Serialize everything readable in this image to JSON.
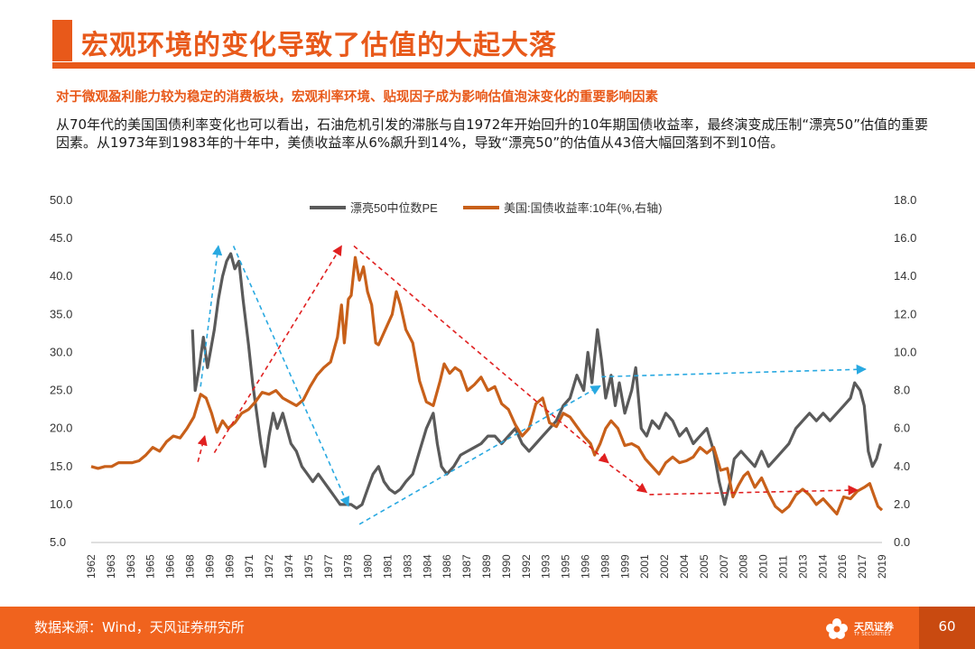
{
  "page": {
    "title": "宏观环境的变化导致了估值的大起大落",
    "subtitle": "对于微观盈利能力较为稳定的消费板块，宏观利率环境、贴现因子成为影响估值泡沫变化的重要影响因素",
    "body": "从70年代的美国国债利率变化也可以看出，石油危机引发的滞胀与自1972年开始回升的10年期国债收益率，最终演变成压制“漂亮50”估值的重要因素。从1973年到1983年的十年中，美债收益率从6%飙升到14%，导致“漂亮50”的估值从43倍大幅回落到不到10倍。",
    "footer_source": "数据来源：Wind，天风证券研究所",
    "logo_text": "天风证券",
    "logo_subtext": "TF SECURITIES",
    "page_number": "60"
  },
  "colors": {
    "accent": "#e8591a",
    "pe_series": "#5a5a5a",
    "yield_series": "#c8601a",
    "arrow_blue": "#29a9e1",
    "arrow_red": "#e02020"
  },
  "icons": {
    "logo": "tf-securities-flower-icon"
  },
  "chart_data": {
    "type": "line",
    "x_categories": [
      "1962",
      "1963",
      "1963",
      "1965",
      "1966",
      "1968",
      "1969",
      "1969",
      "1971",
      "1972",
      "1974",
      "1975",
      "1977",
      "1978",
      "1980",
      "1981",
      "1983",
      "1984",
      "1986",
      "1987",
      "1989",
      "1990",
      "1992",
      "1993",
      "1995",
      "1996",
      "1998",
      "1999",
      "2001",
      "2002",
      "2004",
      "2005",
      "2007",
      "2008",
      "2010",
      "2011",
      "2013",
      "2014",
      "2016",
      "2017",
      "2019"
    ],
    "x_range": [
      1962,
      2019.8
    ],
    "y_left": {
      "ticks": [
        "5.0",
        "10.0",
        "15.0",
        "20.0",
        "25.0",
        "30.0",
        "35.0",
        "40.0",
        "45.0",
        "50.0"
      ],
      "range": [
        5,
        50
      ]
    },
    "y_right": {
      "ticks": [
        "0.0",
        "2.0",
        "4.0",
        "6.0",
        "8.0",
        "10.0",
        "12.0",
        "14.0",
        "16.0",
        "18.0"
      ],
      "range": [
        0,
        18
      ]
    },
    "legend_position": "top-center",
    "grid": false,
    "series": [
      {
        "name": "漂亮50中位数PE",
        "axis": "left",
        "points": [
          [
            1969.4,
            33
          ],
          [
            1969.6,
            25
          ],
          [
            1969.9,
            28
          ],
          [
            1970.2,
            32
          ],
          [
            1970.5,
            28
          ],
          [
            1970.7,
            30
          ],
          [
            1971.0,
            33
          ],
          [
            1971.3,
            37
          ],
          [
            1971.6,
            40
          ],
          [
            1971.9,
            42
          ],
          [
            1972.2,
            43
          ],
          [
            1972.5,
            41
          ],
          [
            1972.8,
            42
          ],
          [
            1973.1,
            37
          ],
          [
            1973.5,
            31
          ],
          [
            1973.8,
            26
          ],
          [
            1974.1,
            22
          ],
          [
            1974.4,
            18
          ],
          [
            1974.7,
            15
          ],
          [
            1975.0,
            19
          ],
          [
            1975.3,
            22
          ],
          [
            1975.6,
            20
          ],
          [
            1976.0,
            22
          ],
          [
            1976.3,
            20
          ],
          [
            1976.6,
            18
          ],
          [
            1977.0,
            17
          ],
          [
            1977.4,
            15
          ],
          [
            1977.8,
            14
          ],
          [
            1978.2,
            13
          ],
          [
            1978.6,
            14
          ],
          [
            1979.0,
            13
          ],
          [
            1979.4,
            12
          ],
          [
            1979.8,
            11
          ],
          [
            1980.2,
            10
          ],
          [
            1980.6,
            10
          ],
          [
            1981.0,
            10
          ],
          [
            1981.4,
            9.5
          ],
          [
            1981.8,
            10
          ],
          [
            1982.2,
            12
          ],
          [
            1982.6,
            14
          ],
          [
            1983.0,
            15
          ],
          [
            1983.4,
            13
          ],
          [
            1983.8,
            12
          ],
          [
            1984.2,
            11.5
          ],
          [
            1984.6,
            12
          ],
          [
            1985.0,
            13
          ],
          [
            1985.5,
            14
          ],
          [
            1986.0,
            17
          ],
          [
            1986.5,
            20
          ],
          [
            1987.0,
            22
          ],
          [
            1987.3,
            18
          ],
          [
            1987.6,
            15
          ],
          [
            1988.0,
            14
          ],
          [
            1988.5,
            15
          ],
          [
            1989.0,
            16.5
          ],
          [
            1989.5,
            17
          ],
          [
            1990.0,
            17.5
          ],
          [
            1990.5,
            18
          ],
          [
            1991.0,
            19
          ],
          [
            1991.5,
            19
          ],
          [
            1992.0,
            18
          ],
          [
            1992.5,
            19
          ],
          [
            1993.0,
            20
          ],
          [
            1993.5,
            18
          ],
          [
            1994.0,
            17
          ],
          [
            1994.5,
            18
          ],
          [
            1995.0,
            19
          ],
          [
            1995.5,
            20
          ],
          [
            1996.0,
            21
          ],
          [
            1996.5,
            23
          ],
          [
            1997.0,
            24
          ],
          [
            1997.5,
            27
          ],
          [
            1998.0,
            25
          ],
          [
            1998.3,
            30
          ],
          [
            1998.6,
            26
          ],
          [
            1999.0,
            33
          ],
          [
            1999.3,
            29
          ],
          [
            1999.6,
            24
          ],
          [
            2000.0,
            27
          ],
          [
            2000.3,
            23
          ],
          [
            2000.6,
            26
          ],
          [
            2001.0,
            22
          ],
          [
            2001.5,
            25
          ],
          [
            2001.8,
            28
          ],
          [
            2002.2,
            20
          ],
          [
            2002.6,
            19
          ],
          [
            2003.0,
            21
          ],
          [
            2003.5,
            20
          ],
          [
            2004.0,
            22
          ],
          [
            2004.5,
            21
          ],
          [
            2005.0,
            19
          ],
          [
            2005.5,
            20
          ],
          [
            2006.0,
            18
          ],
          [
            2006.5,
            19
          ],
          [
            2007.0,
            20
          ],
          [
            2007.5,
            17
          ],
          [
            2007.9,
            13
          ],
          [
            2008.3,
            10
          ],
          [
            2008.7,
            13
          ],
          [
            2009.0,
            16
          ],
          [
            2009.5,
            17
          ],
          [
            2010.0,
            16
          ],
          [
            2010.5,
            15
          ],
          [
            2011.0,
            17
          ],
          [
            2011.5,
            15
          ],
          [
            2012.0,
            16
          ],
          [
            2012.5,
            17
          ],
          [
            2013.0,
            18
          ],
          [
            2013.5,
            20
          ],
          [
            2014.0,
            21
          ],
          [
            2014.5,
            22
          ],
          [
            2015.0,
            21
          ],
          [
            2015.5,
            22
          ],
          [
            2016.0,
            21
          ],
          [
            2016.5,
            22
          ],
          [
            2017.0,
            23
          ],
          [
            2017.5,
            24
          ],
          [
            2017.8,
            26
          ],
          [
            2018.2,
            25
          ],
          [
            2018.5,
            23
          ],
          [
            2018.8,
            17
          ],
          [
            2019.1,
            15
          ],
          [
            2019.4,
            16
          ],
          [
            2019.7,
            18
          ]
        ]
      },
      {
        "name": "美国:国债收益率:10年(%,右轴)",
        "axis": "right",
        "points": [
          [
            1962.0,
            4.0
          ],
          [
            1962.5,
            3.9
          ],
          [
            1963.0,
            4.0
          ],
          [
            1963.5,
            4.0
          ],
          [
            1964.0,
            4.2
          ],
          [
            1964.5,
            4.2
          ],
          [
            1965.0,
            4.2
          ],
          [
            1965.5,
            4.3
          ],
          [
            1966.0,
            4.6
          ],
          [
            1966.5,
            5.0
          ],
          [
            1967.0,
            4.8
          ],
          [
            1967.5,
            5.3
          ],
          [
            1968.0,
            5.6
          ],
          [
            1968.5,
            5.5
          ],
          [
            1969.0,
            6.0
          ],
          [
            1969.5,
            6.6
          ],
          [
            1970.0,
            7.8
          ],
          [
            1970.4,
            7.6
          ],
          [
            1970.8,
            6.8
          ],
          [
            1971.2,
            5.8
          ],
          [
            1971.6,
            6.4
          ],
          [
            1972.0,
            6.0
          ],
          [
            1972.5,
            6.3
          ],
          [
            1973.0,
            6.8
          ],
          [
            1973.5,
            7.0
          ],
          [
            1974.0,
            7.4
          ],
          [
            1974.5,
            7.9
          ],
          [
            1975.0,
            7.8
          ],
          [
            1975.5,
            8.0
          ],
          [
            1976.0,
            7.6
          ],
          [
            1976.5,
            7.4
          ],
          [
            1977.0,
            7.2
          ],
          [
            1977.5,
            7.5
          ],
          [
            1978.0,
            8.2
          ],
          [
            1978.5,
            8.8
          ],
          [
            1979.0,
            9.2
          ],
          [
            1979.5,
            9.5
          ],
          [
            1980.0,
            10.8
          ],
          [
            1980.3,
            12.5
          ],
          [
            1980.5,
            10.5
          ],
          [
            1980.8,
            12.8
          ],
          [
            1981.0,
            13.0
          ],
          [
            1981.3,
            15.0
          ],
          [
            1981.6,
            13.8
          ],
          [
            1981.9,
            14.5
          ],
          [
            1982.2,
            13.2
          ],
          [
            1982.5,
            12.5
          ],
          [
            1982.8,
            10.5
          ],
          [
            1983.0,
            10.4
          ],
          [
            1983.5,
            11.2
          ],
          [
            1984.0,
            12.0
          ],
          [
            1984.3,
            13.2
          ],
          [
            1984.6,
            12.5
          ],
          [
            1985.0,
            11.2
          ],
          [
            1985.5,
            10.5
          ],
          [
            1986.0,
            8.5
          ],
          [
            1986.5,
            7.4
          ],
          [
            1987.0,
            7.2
          ],
          [
            1987.5,
            8.5
          ],
          [
            1987.8,
            9.4
          ],
          [
            1988.2,
            8.9
          ],
          [
            1988.6,
            9.2
          ],
          [
            1989.0,
            9.0
          ],
          [
            1989.5,
            8.0
          ],
          [
            1990.0,
            8.3
          ],
          [
            1990.5,
            8.7
          ],
          [
            1991.0,
            8.0
          ],
          [
            1991.5,
            8.2
          ],
          [
            1992.0,
            7.3
          ],
          [
            1992.5,
            7.0
          ],
          [
            1993.0,
            6.2
          ],
          [
            1993.5,
            5.6
          ],
          [
            1994.0,
            6.0
          ],
          [
            1994.5,
            7.3
          ],
          [
            1995.0,
            7.6
          ],
          [
            1995.5,
            6.3
          ],
          [
            1996.0,
            6.1
          ],
          [
            1996.5,
            6.8
          ],
          [
            1997.0,
            6.6
          ],
          [
            1997.5,
            6.1
          ],
          [
            1998.0,
            5.6
          ],
          [
            1998.5,
            5.2
          ],
          [
            1998.8,
            4.6
          ],
          [
            1999.2,
            5.2
          ],
          [
            1999.6,
            6.0
          ],
          [
            2000.0,
            6.4
          ],
          [
            2000.5,
            6.0
          ],
          [
            2001.0,
            5.1
          ],
          [
            2001.5,
            5.2
          ],
          [
            2002.0,
            5.0
          ],
          [
            2002.5,
            4.4
          ],
          [
            2003.0,
            4.0
          ],
          [
            2003.5,
            3.6
          ],
          [
            2004.0,
            4.2
          ],
          [
            2004.5,
            4.5
          ],
          [
            2005.0,
            4.2
          ],
          [
            2005.5,
            4.3
          ],
          [
            2006.0,
            4.5
          ],
          [
            2006.5,
            5.0
          ],
          [
            2007.0,
            4.7
          ],
          [
            2007.5,
            5.0
          ],
          [
            2008.0,
            3.8
          ],
          [
            2008.5,
            3.9
          ],
          [
            2008.9,
            2.4
          ],
          [
            2009.3,
            3.0
          ],
          [
            2009.7,
            3.5
          ],
          [
            2010.0,
            3.7
          ],
          [
            2010.5,
            2.9
          ],
          [
            2011.0,
            3.4
          ],
          [
            2011.5,
            2.6
          ],
          [
            2012.0,
            1.9
          ],
          [
            2012.5,
            1.6
          ],
          [
            2013.0,
            1.9
          ],
          [
            2013.5,
            2.5
          ],
          [
            2014.0,
            2.8
          ],
          [
            2014.5,
            2.5
          ],
          [
            2015.0,
            2.0
          ],
          [
            2015.5,
            2.3
          ],
          [
            2016.0,
            1.9
          ],
          [
            2016.5,
            1.5
          ],
          [
            2017.0,
            2.4
          ],
          [
            2017.5,
            2.3
          ],
          [
            2018.0,
            2.7
          ],
          [
            2018.5,
            2.9
          ],
          [
            2018.9,
            3.1
          ],
          [
            2019.2,
            2.5
          ],
          [
            2019.5,
            1.9
          ],
          [
            2019.8,
            1.7
          ]
        ]
      }
    ],
    "annotations": {
      "arrows": [
        {
          "color": "blue",
          "from": [
            1970.0,
            25.5
          ],
          "to": [
            1971.3,
            44
          ]
        },
        {
          "color": "blue",
          "from": [
            1972.4,
            44
          ],
          "to": [
            1980.8,
            9.8
          ]
        },
        {
          "color": "blue",
          "from": [
            1981.6,
            7.4
          ],
          "to": [
            1999.2,
            25.6
          ]
        },
        {
          "color": "blue",
          "from": [
            1999.3,
            26.8
          ],
          "to": [
            2018.6,
            27.8
          ]
        },
        {
          "color": "red",
          "from": [
            1969.8,
            15.6
          ],
          "to": [
            1970.3,
            19.0
          ]
        },
        {
          "color": "red",
          "from": [
            1971.0,
            16.8
          ],
          "to": [
            1980.3,
            44
          ]
        },
        {
          "color": "red",
          "from": [
            1981.2,
            44
          ],
          "to": [
            1999.8,
            15.5
          ]
        },
        {
          "color": "red",
          "from": [
            1999.9,
            15.2
          ],
          "to": [
            2002.6,
            11.6
          ]
        },
        {
          "color": "red",
          "from": [
            2002.8,
            11.3
          ],
          "to": [
            2018.0,
            11.9
          ]
        }
      ]
    }
  }
}
